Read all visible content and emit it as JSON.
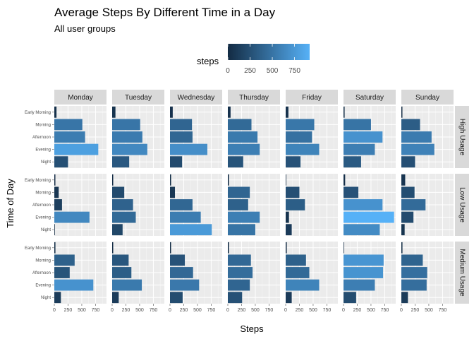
{
  "chart_data": {
    "type": "bar",
    "orientation": "horizontal",
    "title": "Average Steps By Different Time in a Day",
    "subtitle": "All user groups",
    "xlabel": "Steps",
    "ylabel": "Time of Day",
    "xlim": [
      0,
      950
    ],
    "x_ticks": [
      0,
      250,
      500,
      750
    ],
    "x_tick_labels": [
      "0",
      "250",
      "500",
      "750"
    ],
    "categories": [
      "Early Morning",
      "Morning",
      "Afternoon",
      "Evening",
      "Night"
    ],
    "columns": [
      "Monday",
      "Tuesday",
      "Wednesday",
      "Thursday",
      "Friday",
      "Saturday",
      "Sunday"
    ],
    "rows": [
      "High Usage",
      "Low Usage",
      "Medium Usage"
    ],
    "legend": {
      "title": "steps",
      "position": "top",
      "ticks": [
        0,
        250,
        500,
        750
      ],
      "tick_labels": [
        "0",
        "250",
        "500",
        "750"
      ],
      "range": [
        0,
        920
      ],
      "color_low": "#132B43",
      "color_high": "#56B1F7"
    },
    "grid": true,
    "panels": [
      {
        "row": "High Usage",
        "col": "Monday",
        "values": [
          40,
          510,
          560,
          800,
          250
        ]
      },
      {
        "row": "High Usage",
        "col": "Tuesday",
        "values": [
          60,
          510,
          550,
          640,
          310
        ]
      },
      {
        "row": "High Usage",
        "col": "Wednesday",
        "values": [
          50,
          400,
          410,
          680,
          220
        ]
      },
      {
        "row": "High Usage",
        "col": "Thursday",
        "values": [
          50,
          430,
          540,
          580,
          280
        ]
      },
      {
        "row": "High Usage",
        "col": "Friday",
        "values": [
          50,
          520,
          480,
          610,
          270
        ]
      },
      {
        "row": "High Usage",
        "col": "Saturday",
        "values": [
          20,
          500,
          710,
          570,
          320
        ]
      },
      {
        "row": "High Usage",
        "col": "Sunday",
        "values": [
          10,
          340,
          550,
          600,
          250
        ]
      },
      {
        "row": "Low Usage",
        "col": "Monday",
        "values": [
          10,
          80,
          140,
          640,
          0
        ]
      },
      {
        "row": "Low Usage",
        "col": "Tuesday",
        "values": [
          10,
          220,
          380,
          430,
          190
        ]
      },
      {
        "row": "Low Usage",
        "col": "Wednesday",
        "values": [
          20,
          90,
          410,
          560,
          760
        ]
      },
      {
        "row": "Low Usage",
        "col": "Thursday",
        "values": [
          20,
          400,
          370,
          580,
          500
        ]
      },
      {
        "row": "Low Usage",
        "col": "Friday",
        "values": [
          0,
          250,
          350,
          60,
          110
        ]
      },
      {
        "row": "Low Usage",
        "col": "Saturday",
        "values": [
          30,
          270,
          710,
          920,
          660
        ]
      },
      {
        "row": "Low Usage",
        "col": "Sunday",
        "values": [
          70,
          240,
          440,
          220,
          60
        ]
      },
      {
        "row": "Medium Usage",
        "col": "Monday",
        "values": [
          20,
          370,
          280,
          710,
          120
        ]
      },
      {
        "row": "Medium Usage",
        "col": "Tuesday",
        "values": [
          10,
          300,
          350,
          540,
          120
        ]
      },
      {
        "row": "Medium Usage",
        "col": "Wednesday",
        "values": [
          10,
          270,
          420,
          530,
          230
        ]
      },
      {
        "row": "Medium Usage",
        "col": "Thursday",
        "values": [
          20,
          420,
          450,
          400,
          260
        ]
      },
      {
        "row": "Medium Usage",
        "col": "Friday",
        "values": [
          10,
          370,
          430,
          610,
          110
        ]
      },
      {
        "row": "Medium Usage",
        "col": "Saturday",
        "values": [
          0,
          730,
          720,
          570,
          230
        ]
      },
      {
        "row": "Medium Usage",
        "col": "Sunday",
        "values": [
          20,
          390,
          470,
          460,
          120
        ]
      }
    ]
  }
}
